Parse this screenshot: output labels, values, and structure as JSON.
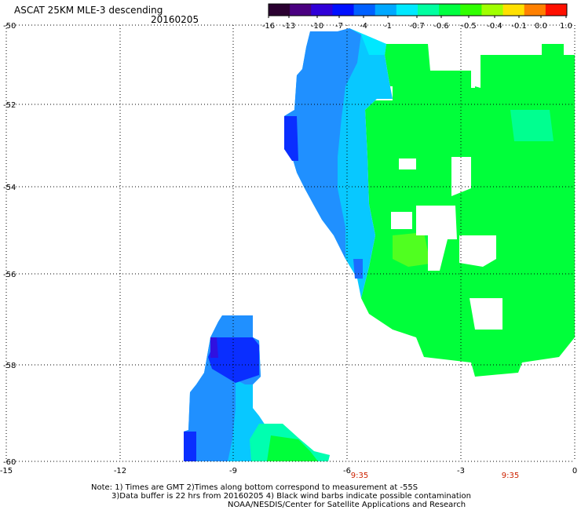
{
  "header": {
    "title": "ASCAT 25KM MLE-3 descending",
    "date": "20160205"
  },
  "colorbar": {
    "labels": [
      "-16",
      "-13",
      "-10",
      "-7",
      "-4",
      "-1",
      "-0.7",
      "-0.6",
      "-0.5",
      "-0.4",
      "-0.1",
      "0.0",
      "1.0"
    ],
    "colors": [
      "#2a0030",
      "#4a0080",
      "#3000d8",
      "#0010ff",
      "#0060ff",
      "#00a8ff",
      "#00e8ff",
      "#00ffa0",
      "#00ff40",
      "#30ff00",
      "#a0ff00",
      "#ffe000",
      "#ff8000",
      "#ff1000"
    ]
  },
  "axes": {
    "lat_labels": [
      "-50",
      "-52",
      "-54",
      "-56",
      "-58",
      "-60"
    ],
    "lon_labels": [
      "-15",
      "-12",
      "-9",
      "-6",
      "-3",
      "0"
    ],
    "time_labels": [
      "9:35",
      "9:35"
    ]
  },
  "colors": {
    "blue_dark": "#0a2eff",
    "blue": "#1a6cff",
    "blue_mid": "#2090ff",
    "cyan": "#08c8ff",
    "cyan_light": "#00e8ff",
    "aqua": "#00ffb0",
    "green": "#00ff3a",
    "lime": "#50ff20",
    "purple": "#3010e0",
    "time_label": "#cc2200"
  },
  "notes": {
    "line1": "Note: 1) Times are GMT 2)Times along bottom correspond to measurement at -55S",
    "line2": "3)Data buffer is 22 hrs from 20160205 4) Black wind barbs indicate possible contamination",
    "line3": "NOAA/NESDIS/Center for Satellite Applications and Research"
  }
}
